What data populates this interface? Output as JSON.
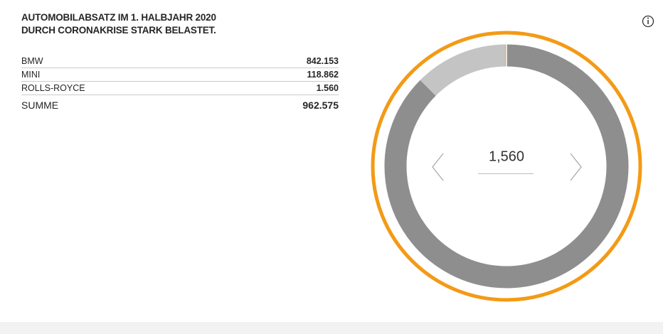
{
  "chart_data": {
    "type": "donut",
    "title": [
      "AUTOMOBILABSATZ IM 1. HALBJAHR 2020",
      "DURCH CORONAKRISE STARK BELASTET."
    ],
    "categories": [
      "BMW",
      "MINI",
      "ROLLS-ROYCE"
    ],
    "values": [
      842153,
      118862,
      1560
    ],
    "value_labels": [
      "842.153",
      "118.862",
      "1.560"
    ],
    "colors": [
      "#8e8e8e",
      "#c4c4c4",
      "#f0950f"
    ],
    "total": {
      "label": "SUMME",
      "value": "962.575"
    },
    "center_label": "1,560"
  }
}
